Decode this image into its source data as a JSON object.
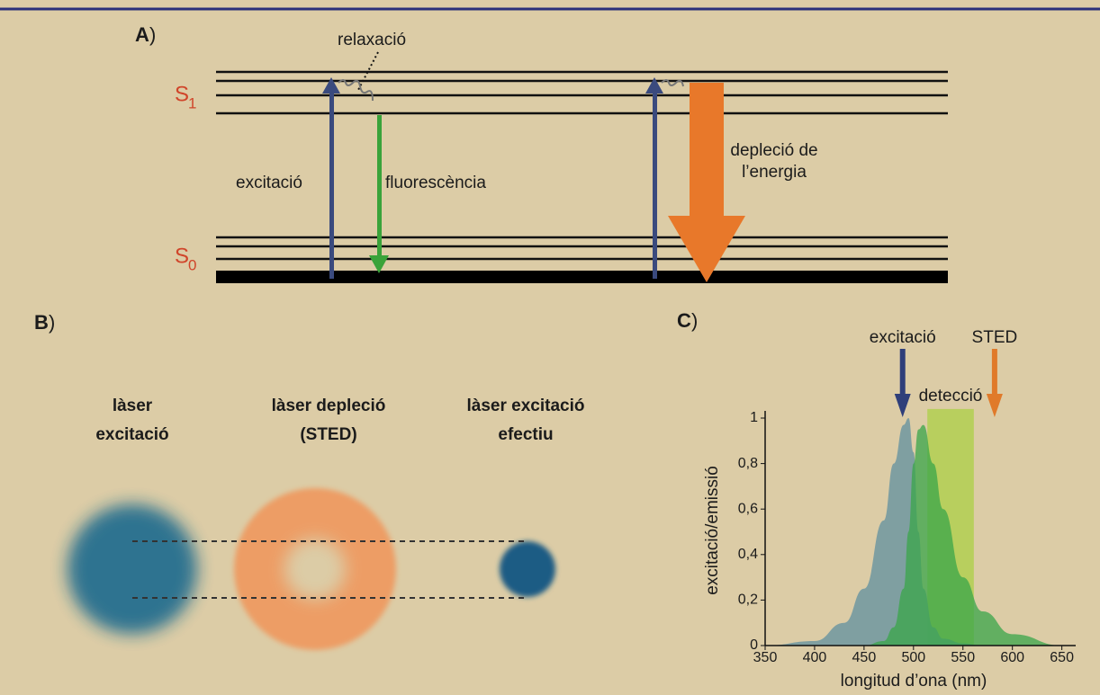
{
  "panel_a": {
    "label": "A",
    "label_paren": ")",
    "relaxation": "relaxació",
    "s1": {
      "symbol": "S",
      "subscript": "1"
    },
    "s0": {
      "symbol": "S",
      "subscript": "0"
    },
    "excitation": "excitació",
    "fluorescence": "fluorescència",
    "depletion": [
      "depleció de",
      "l’energia"
    ]
  },
  "panel_b": {
    "label": "B",
    "label_paren": ")",
    "spots": [
      [
        "làser",
        "excitació"
      ],
      [
        "làser depleció",
        "(STED)"
      ],
      [
        "làser excitació",
        "efectiu"
      ]
    ]
  },
  "chart_data": {
    "type": "area",
    "panel_label": "C",
    "panel_label_paren": ")",
    "ylabel": "excitació/emissió",
    "xlabel": "longitud d’ona (nm)",
    "x": [
      350,
      400,
      430,
      450,
      470,
      480,
      490,
      495,
      500,
      505,
      510,
      520,
      530,
      550,
      570,
      600,
      650
    ],
    "series": [
      {
        "color": "#6f97a0",
        "values": [
          0,
          0.02,
          0.1,
          0.25,
          0.55,
          0.8,
          0.97,
          1,
          0.85,
          0.5,
          0.25,
          0.08,
          0.03,
          0.01,
          0,
          0,
          0
        ]
      },
      {
        "color": "#3aa64a",
        "values": [
          0,
          0,
          0,
          0,
          0.02,
          0.08,
          0.25,
          0.5,
          0.8,
          0.95,
          0.97,
          0.8,
          0.6,
          0.3,
          0.15,
          0.05,
          0
        ]
      }
    ],
    "detection": {
      "label": "detecció",
      "x": [
        514,
        561
      ],
      "y": 1.04,
      "color": "#a8d040"
    },
    "markers": [
      {
        "label": "excitació",
        "x": 489,
        "color": "#2f3f7a"
      },
      {
        "label": "STED",
        "x": 582,
        "color": "#e07a2a"
      }
    ],
    "xlim": [
      350,
      664
    ],
    "ylim": [
      0,
      1
    ],
    "xticks": [
      350,
      400,
      450,
      500,
      550,
      600,
      650
    ],
    "yticks": [
      0,
      {
        "value": 0.2,
        "label": "0,2"
      },
      {
        "value": 0.4,
        "label": "0,4"
      },
      {
        "value": 0.6,
        "label": "0,6"
      },
      {
        "value": 0.8,
        "label": "0,8"
      },
      1
    ]
  }
}
